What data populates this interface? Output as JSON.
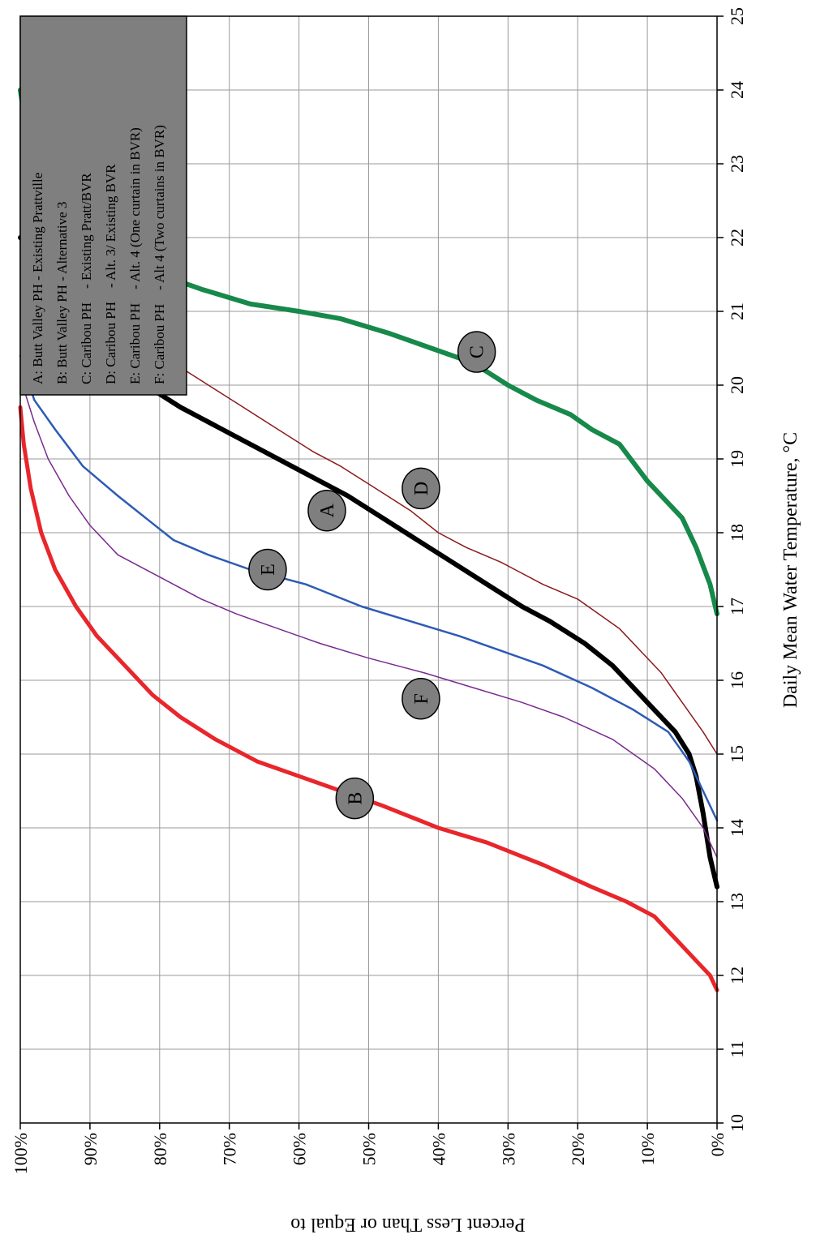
{
  "chart_data": {
    "type": "line",
    "title": "",
    "xlabel": "Daily Mean Water Temperature, °C",
    "ylabel": "Percent Less Than or Equal to",
    "xlim": [
      10,
      25
    ],
    "ylim": [
      0,
      100
    ],
    "x_ticks": [
      "10",
      "11",
      "12",
      "13",
      "14",
      "15",
      "16",
      "17",
      "18",
      "19",
      "20",
      "21",
      "22",
      "23",
      "24",
      "25"
    ],
    "y_ticks": [
      "0%",
      "10%",
      "20%",
      "30%",
      "40%",
      "50%",
      "60%",
      "70%",
      "80%",
      "90%",
      "100%"
    ],
    "grid": true,
    "legend_position": "top-left",
    "legend": [
      "A: Butt Valley PH - Existing Prattville",
      "B: Butt Valley PH - Alternative 3",
      "C: Caribou PH    - Existing Pratt/BVR",
      "D: Caribou PH    - Alt. 3/ Existing BVR",
      "E: Caribou PH    - Alt. 4 (One curtain in BVR)",
      "F: Caribou PH    - Alt 4 (Two curtains in BVR)"
    ],
    "series": [
      {
        "name": "A",
        "color": "#000000",
        "width": 6,
        "points": [
          [
            13.2,
            0
          ],
          [
            13.6,
            1
          ],
          [
            14.2,
            2
          ],
          [
            14.7,
            3
          ],
          [
            15.0,
            4
          ],
          [
            15.3,
            6
          ],
          [
            15.6,
            9
          ],
          [
            15.9,
            12
          ],
          [
            16.2,
            15
          ],
          [
            16.5,
            19
          ],
          [
            16.8,
            24
          ],
          [
            17.0,
            28
          ],
          [
            17.3,
            33
          ],
          [
            17.6,
            38
          ],
          [
            17.9,
            43
          ],
          [
            18.2,
            48
          ],
          [
            18.5,
            53
          ],
          [
            18.8,
            59
          ],
          [
            19.1,
            65
          ],
          [
            19.4,
            71
          ],
          [
            19.7,
            77
          ],
          [
            20.0,
            82
          ],
          [
            20.3,
            85
          ],
          [
            20.6,
            87
          ],
          [
            20.9,
            91
          ],
          [
            21.2,
            94
          ],
          [
            21.5,
            96
          ],
          [
            21.8,
            98
          ],
          [
            22.0,
            100
          ]
        ]
      },
      {
        "name": "B",
        "color": "#e8262b",
        "width": 5,
        "points": [
          [
            11.8,
            0
          ],
          [
            12.0,
            1
          ],
          [
            12.2,
            3
          ],
          [
            12.5,
            6
          ],
          [
            12.8,
            9
          ],
          [
            13.0,
            13
          ],
          [
            13.2,
            18
          ],
          [
            13.5,
            25
          ],
          [
            13.8,
            33
          ],
          [
            14.0,
            40
          ],
          [
            14.3,
            48
          ],
          [
            14.6,
            57
          ],
          [
            14.9,
            66
          ],
          [
            15.2,
            72
          ],
          [
            15.5,
            77
          ],
          [
            15.8,
            81
          ],
          [
            16.2,
            85
          ],
          [
            16.6,
            89
          ],
          [
            17.0,
            92
          ],
          [
            17.5,
            95
          ],
          [
            18.0,
            97
          ],
          [
            18.6,
            98.5
          ],
          [
            19.2,
            99.5
          ],
          [
            19.7,
            100
          ]
        ]
      },
      {
        "name": "C",
        "color": "#17894a",
        "width": 6,
        "points": [
          [
            16.9,
            0
          ],
          [
            17.3,
            1
          ],
          [
            17.8,
            3
          ],
          [
            18.2,
            5
          ],
          [
            18.5,
            8
          ],
          [
            18.7,
            10
          ],
          [
            19.2,
            14
          ],
          [
            19.4,
            18
          ],
          [
            19.6,
            21
          ],
          [
            19.8,
            26
          ],
          [
            20.0,
            30
          ],
          [
            20.3,
            35
          ],
          [
            20.5,
            41
          ],
          [
            20.7,
            47
          ],
          [
            20.9,
            54
          ],
          [
            21.0,
            60
          ],
          [
            21.1,
            67
          ],
          [
            21.3,
            74
          ],
          [
            21.5,
            80
          ],
          [
            21.8,
            85
          ],
          [
            22.1,
            89
          ],
          [
            22.4,
            92
          ],
          [
            22.7,
            95
          ],
          [
            23.0,
            97
          ],
          [
            23.3,
            98.5
          ],
          [
            23.7,
            99.5
          ],
          [
            24.0,
            100
          ]
        ]
      },
      {
        "name": "D",
        "color": "#8b1a1a",
        "width": 1.5,
        "points": [
          [
            15.0,
            0
          ],
          [
            15.3,
            2
          ],
          [
            15.7,
            5
          ],
          [
            16.1,
            8
          ],
          [
            16.4,
            11
          ],
          [
            16.7,
            14
          ],
          [
            16.9,
            17
          ],
          [
            17.1,
            20
          ],
          [
            17.3,
            25
          ],
          [
            17.6,
            31
          ],
          [
            17.8,
            36
          ],
          [
            18.0,
            40
          ],
          [
            18.3,
            44
          ],
          [
            18.6,
            49
          ],
          [
            18.9,
            54
          ],
          [
            19.1,
            58
          ],
          [
            19.4,
            63
          ],
          [
            19.7,
            68
          ],
          [
            20.0,
            73
          ],
          [
            20.3,
            78
          ],
          [
            20.6,
            84
          ],
          [
            20.8,
            89
          ],
          [
            21.0,
            93
          ],
          [
            21.3,
            96
          ],
          [
            21.7,
            99
          ],
          [
            22.0,
            100
          ]
        ]
      },
      {
        "name": "E",
        "color": "#2d5bb5",
        "width": 2.5,
        "points": [
          [
            14.1,
            0
          ],
          [
            14.5,
            2
          ],
          [
            14.9,
            4
          ],
          [
            15.3,
            7
          ],
          [
            15.6,
            12
          ],
          [
            15.9,
            18
          ],
          [
            16.2,
            25
          ],
          [
            16.4,
            31
          ],
          [
            16.6,
            37
          ],
          [
            16.8,
            44
          ],
          [
            17.0,
            51
          ],
          [
            17.3,
            59
          ],
          [
            17.5,
            67
          ],
          [
            17.7,
            73
          ],
          [
            17.9,
            78
          ],
          [
            18.2,
            82
          ],
          [
            18.5,
            86
          ],
          [
            18.9,
            91
          ],
          [
            19.4,
            95
          ],
          [
            19.8,
            98
          ],
          [
            20.4,
            100
          ]
        ]
      },
      {
        "name": "F",
        "color": "#7a2a8f",
        "width": 1.5,
        "points": [
          [
            13.6,
            0
          ],
          [
            14.0,
            2
          ],
          [
            14.4,
            5
          ],
          [
            14.8,
            9
          ],
          [
            15.2,
            15
          ],
          [
            15.5,
            22
          ],
          [
            15.7,
            28
          ],
          [
            15.9,
            35
          ],
          [
            16.1,
            42
          ],
          [
            16.3,
            50
          ],
          [
            16.5,
            57
          ],
          [
            16.7,
            63
          ],
          [
            16.9,
            69
          ],
          [
            17.1,
            74
          ],
          [
            17.4,
            80
          ],
          [
            17.7,
            86
          ],
          [
            18.1,
            90
          ],
          [
            18.5,
            93
          ],
          [
            19.0,
            96
          ],
          [
            19.5,
            98
          ],
          [
            20.1,
            100
          ]
        ]
      }
    ],
    "annotations": [
      {
        "label": "A",
        "x": 18.3,
        "y": 56
      },
      {
        "label": "B",
        "x": 14.4,
        "y": 52
      },
      {
        "label": "C",
        "x": 20.45,
        "y": 34.5
      },
      {
        "label": "D",
        "x": 18.6,
        "y": 42.5
      },
      {
        "label": "E",
        "x": 17.5,
        "y": 64.5
      },
      {
        "label": "F",
        "x": 15.75,
        "y": 42.5
      }
    ]
  }
}
